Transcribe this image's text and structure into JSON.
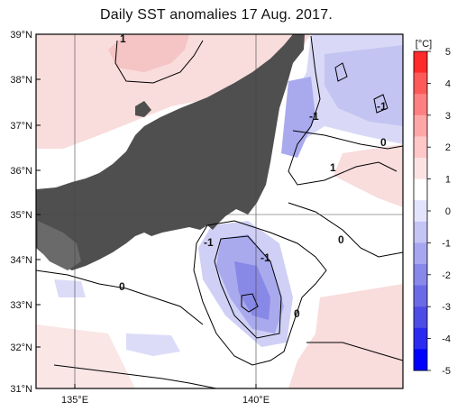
{
  "title": "Daily SST anomalies 17 Aug. 2017.",
  "map": {
    "lat_labels": [
      "39°N",
      "38°N",
      "37°N",
      "36°N",
      "35°N",
      "34°N",
      "33°N",
      "32°N",
      "31°N"
    ],
    "lon_labels": [
      "135°E",
      "140°E"
    ],
    "contour_labels": [
      "1",
      "-1",
      "-1",
      "0",
      "1",
      "-1",
      "-1",
      "0",
      "0",
      "0"
    ]
  },
  "colorbar": {
    "unit": "[°C]",
    "ticks": [
      "5",
      "4",
      "3",
      "2",
      "1",
      "0",
      "-1",
      "-2",
      "-3",
      "-4",
      "-5"
    ],
    "colors": [
      "#ff2a2a",
      "#ff5a5a",
      "#ff8080",
      "#ffa7a7",
      "#ffc8c8",
      "#fbe3e3",
      "#ffffff",
      "#e3e3fb",
      "#c4c4f5",
      "#a7a7ef",
      "#8888ea",
      "#6a6ae6",
      "#4d4de6",
      "#2b2bf0",
      "#0000ff"
    ]
  },
  "colors": {
    "land": "#4f4f4f",
    "warm": "#f9dcdc",
    "cool": "#c8c8f3",
    "cold": "#8b8be6"
  }
}
